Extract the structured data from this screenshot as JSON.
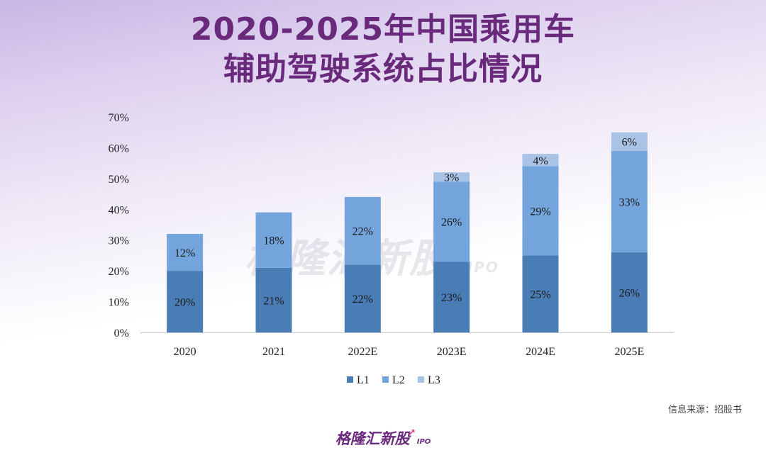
{
  "title_line1": "2020-2025年中国乘用车",
  "title_line2": "辅助驾驶系统占比情况",
  "source_text": "信息来源：招股书",
  "brand_name": "格隆汇新股",
  "brand_suffix": "IPO",
  "colors": {
    "title": "#6a2a7c",
    "L1": "#4a7db5",
    "L2": "#73a5dc",
    "L3": "#a9c3e6"
  },
  "chart_data": {
    "type": "bar",
    "stacked": true,
    "categories": [
      "2020",
      "2021",
      "2022E",
      "2023E",
      "2024E",
      "2025E"
    ],
    "series": [
      {
        "name": "L1",
        "values": [
          20,
          21,
          22,
          23,
          25,
          26
        ],
        "labels": [
          "20%",
          "21%",
          "22%",
          "23%",
          "25%",
          "26%"
        ]
      },
      {
        "name": "L2",
        "values": [
          12,
          18,
          22,
          26,
          29,
          33
        ],
        "labels": [
          "12%",
          "18%",
          "22%",
          "26%",
          "29%",
          "33%"
        ]
      },
      {
        "name": "L3",
        "values": [
          0,
          0,
          0,
          3,
          4,
          6
        ],
        "labels": [
          "",
          "",
          "",
          "3%",
          "4%",
          "6%"
        ]
      }
    ],
    "ylim": [
      0,
      70
    ],
    "yticks": [
      "0%",
      "10%",
      "20%",
      "30%",
      "40%",
      "50%",
      "60%",
      "70%"
    ],
    "grid": false,
    "legend_position": "bottom"
  }
}
